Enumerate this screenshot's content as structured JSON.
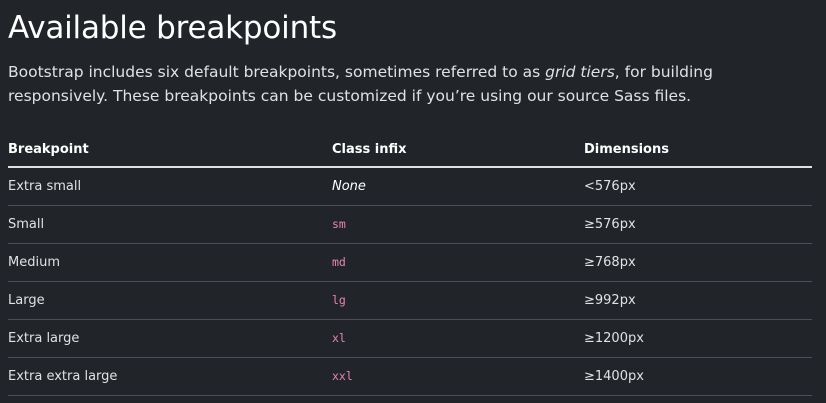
{
  "heading": "Available breakpoints",
  "lead": {
    "before": "Bootstrap includes six default breakpoints, sometimes referred to as ",
    "em": "grid tiers",
    "after": ", for building responsively. These breakpoints can be customized if you’re using our source Sass files."
  },
  "table": {
    "headers": {
      "breakpoint": "Breakpoint",
      "class_infix": "Class infix",
      "dimensions": "Dimensions"
    },
    "rows": [
      {
        "breakpoint": "Extra small",
        "infix": "None",
        "dimensions": "<576px"
      },
      {
        "breakpoint": "Small",
        "infix": "sm",
        "dimensions": "≥576px"
      },
      {
        "breakpoint": "Medium",
        "infix": "md",
        "dimensions": "≥768px"
      },
      {
        "breakpoint": "Large",
        "infix": "lg",
        "dimensions": "≥992px"
      },
      {
        "breakpoint": "Extra large",
        "infix": "xl",
        "dimensions": "≥1200px"
      },
      {
        "breakpoint": "Extra extra large",
        "infix": "xxl",
        "dimensions": "≥1400px"
      }
    ]
  },
  "colors": {
    "background": "#212529",
    "text": "#dee2e6",
    "code": "#e685b5",
    "border": "#495057"
  }
}
